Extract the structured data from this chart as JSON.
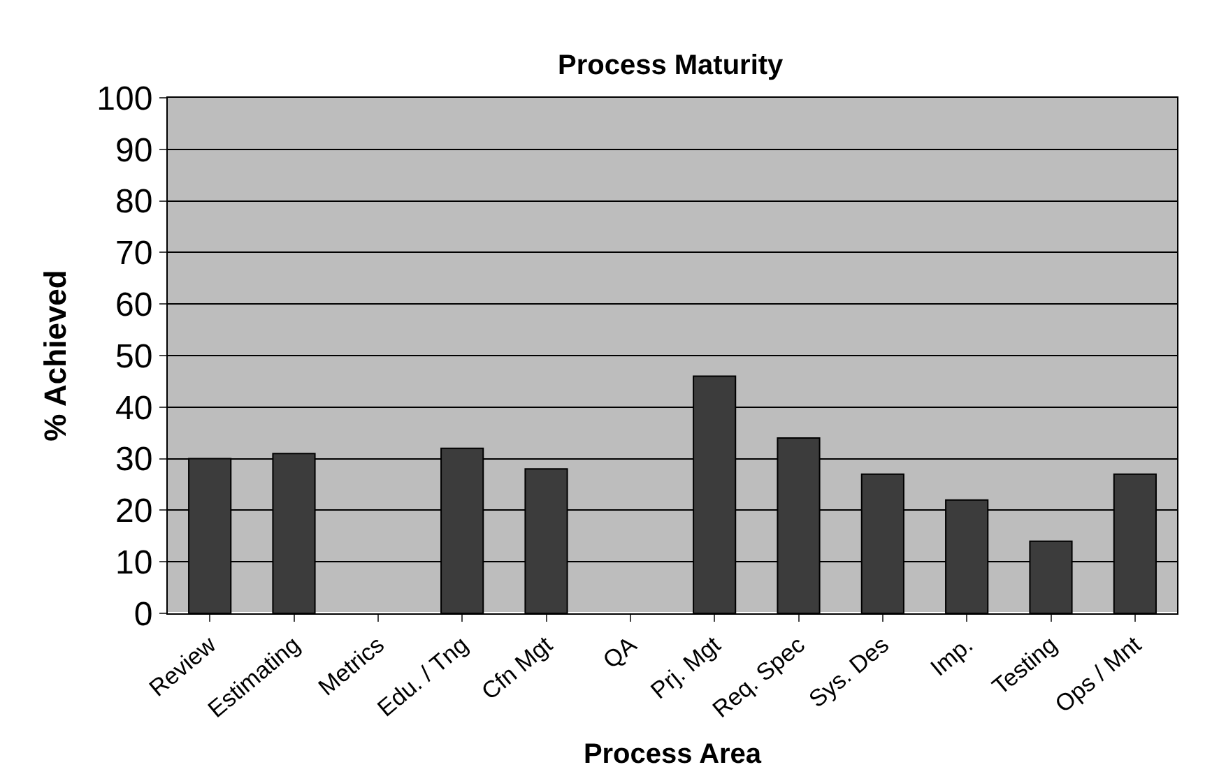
{
  "chart_data": {
    "type": "bar",
    "title": "Process Maturity",
    "xlabel": "Process Area",
    "ylabel": "% Achieved",
    "categories": [
      "Review",
      "Estimating",
      "Metrics",
      "Edu. / Tng",
      "Cfn Mgt",
      "QA",
      "Prj. Mgt",
      "Req. Spec",
      "Sys. Des",
      "Imp.",
      "Testing",
      "Ops / Mnt"
    ],
    "values": [
      30,
      31,
      null,
      32,
      28,
      null,
      46,
      34,
      27,
      22,
      14,
      27
    ],
    "color": "#3c3c3c",
    "ylim": [
      0,
      100
    ],
    "yticks": [
      0,
      10,
      20,
      30,
      40,
      50,
      60,
      70,
      80,
      90,
      100
    ],
    "grid": "y"
  }
}
